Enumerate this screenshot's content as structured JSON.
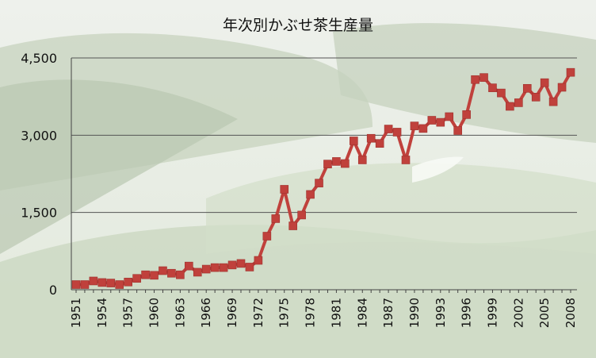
{
  "chart_data": {
    "type": "line",
    "title": "年次別かぶせ茶生産量",
    "xlabel": "",
    "ylabel": "",
    "ylim": [
      0,
      4500
    ],
    "yticks": [
      0,
      1500,
      3000,
      4500
    ],
    "ytick_labels": [
      "0",
      "1,500",
      "3,000",
      "4,500"
    ],
    "xtick_labels": [
      "1951",
      "1954",
      "1957",
      "1960",
      "1963",
      "1966",
      "1969",
      "1972",
      "1975",
      "1978",
      "1981",
      "1984",
      "1987",
      "1990",
      "1993",
      "1996",
      "1999",
      "2002",
      "2005",
      "2008"
    ],
    "grid": true,
    "legend": "none",
    "series_color": "#c0413c",
    "x": [
      1951,
      1952,
      1953,
      1954,
      1955,
      1956,
      1957,
      1958,
      1959,
      1960,
      1961,
      1962,
      1963,
      1964,
      1965,
      1966,
      1967,
      1968,
      1969,
      1970,
      1971,
      1972,
      1973,
      1974,
      1975,
      1976,
      1977,
      1978,
      1979,
      1980,
      1981,
      1982,
      1983,
      1984,
      1985,
      1986,
      1987,
      1988,
      1989,
      1990,
      1991,
      1992,
      1993,
      1994,
      1995,
      1996,
      1997,
      1998,
      1999,
      2000,
      2001,
      2002,
      2003,
      2004,
      2005,
      2006,
      2007,
      2008
    ],
    "values": [
      100,
      100,
      170,
      140,
      130,
      100,
      150,
      220,
      290,
      280,
      370,
      320,
      290,
      460,
      340,
      400,
      430,
      430,
      480,
      510,
      440,
      570,
      1040,
      1380,
      1950,
      1240,
      1450,
      1850,
      2070,
      2440,
      2490,
      2450,
      2890,
      2520,
      2940,
      2840,
      3120,
      3060,
      2520,
      3180,
      3130,
      3290,
      3250,
      3360,
      3090,
      3400,
      4080,
      4120,
      3920,
      3820,
      3560,
      3630,
      3910,
      3740,
      4020,
      3650,
      3930,
      4220
    ]
  }
}
